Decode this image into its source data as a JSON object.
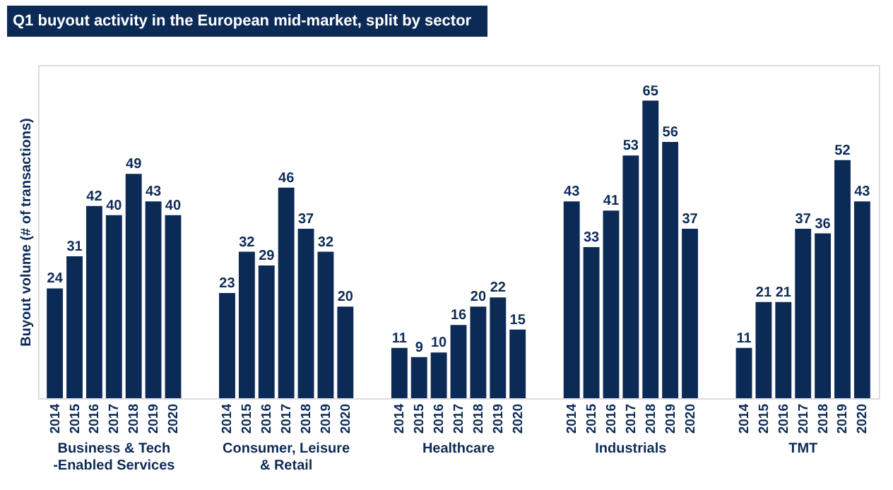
{
  "chart_data": {
    "type": "bar",
    "title": "Q1 buyout activity in the European mid-market, split by sector",
    "ylabel": "Buyout volume (# of transactions)",
    "categories": [
      "Business & Tech\n-Enabled Services",
      "Consumer, Leisure\n& Retail",
      "Healthcare",
      "Industrials",
      "TMT"
    ],
    "series": [
      {
        "name": "2014",
        "color": "#0c2a56",
        "values": [
          24,
          23,
          11,
          43,
          11
        ]
      },
      {
        "name": "2015",
        "color": "#0c2a56",
        "values": [
          31,
          32,
          9,
          33,
          21
        ]
      },
      {
        "name": "2016",
        "color": "#0c2a56",
        "values": [
          42,
          29,
          10,
          41,
          21
        ]
      },
      {
        "name": "2017",
        "color": "#0c2a56",
        "values": [
          40,
          46,
          16,
          53,
          37
        ]
      },
      {
        "name": "2018",
        "color": "#0c2a56",
        "values": [
          49,
          37,
          20,
          65,
          36
        ]
      },
      {
        "name": "2019",
        "color": "#0c2a56",
        "values": [
          43,
          32,
          22,
          56,
          52
        ]
      },
      {
        "name": "2020",
        "color": "#0c2a56",
        "values": [
          40,
          20,
          15,
          37,
          43
        ]
      }
    ],
    "data_labels": true,
    "grid": false,
    "legend": false
  }
}
